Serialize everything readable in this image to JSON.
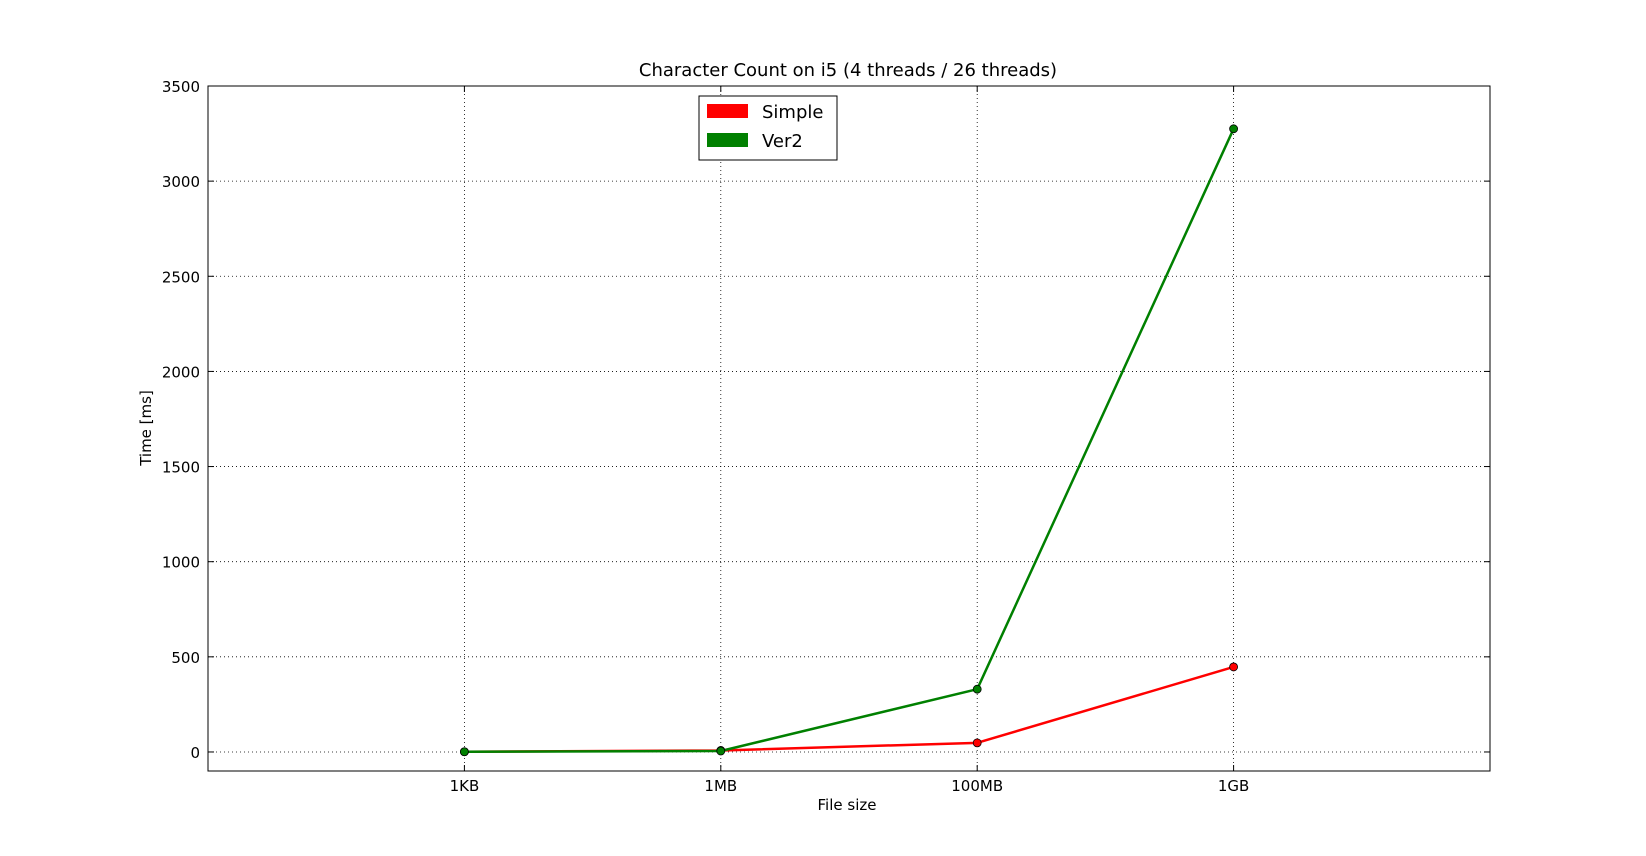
{
  "chart_data": {
    "type": "line",
    "title": "Character Count on i5 (4 threads / 26 threads)",
    "xlabel": "File size",
    "ylabel": "Time [ms]",
    "categories": [
      "1KB",
      "1MB",
      "100MB",
      "1GB"
    ],
    "x_range": [
      0,
      5
    ],
    "x": [
      1,
      2,
      3,
      4
    ],
    "ylim": [
      -100,
      3500
    ],
    "yticks": [
      0,
      500,
      1000,
      1500,
      2000,
      2500,
      3000,
      3500
    ],
    "grid": true,
    "grid_style": "dotted",
    "legend_position": "upper center",
    "markers": "circle",
    "series": [
      {
        "name": "Simple",
        "color": "#ff0000",
        "values": [
          1,
          8,
          48,
          447
        ]
      },
      {
        "name": "Ver2",
        "color": "#008000",
        "values": [
          1,
          5,
          330,
          3275
        ]
      }
    ]
  }
}
